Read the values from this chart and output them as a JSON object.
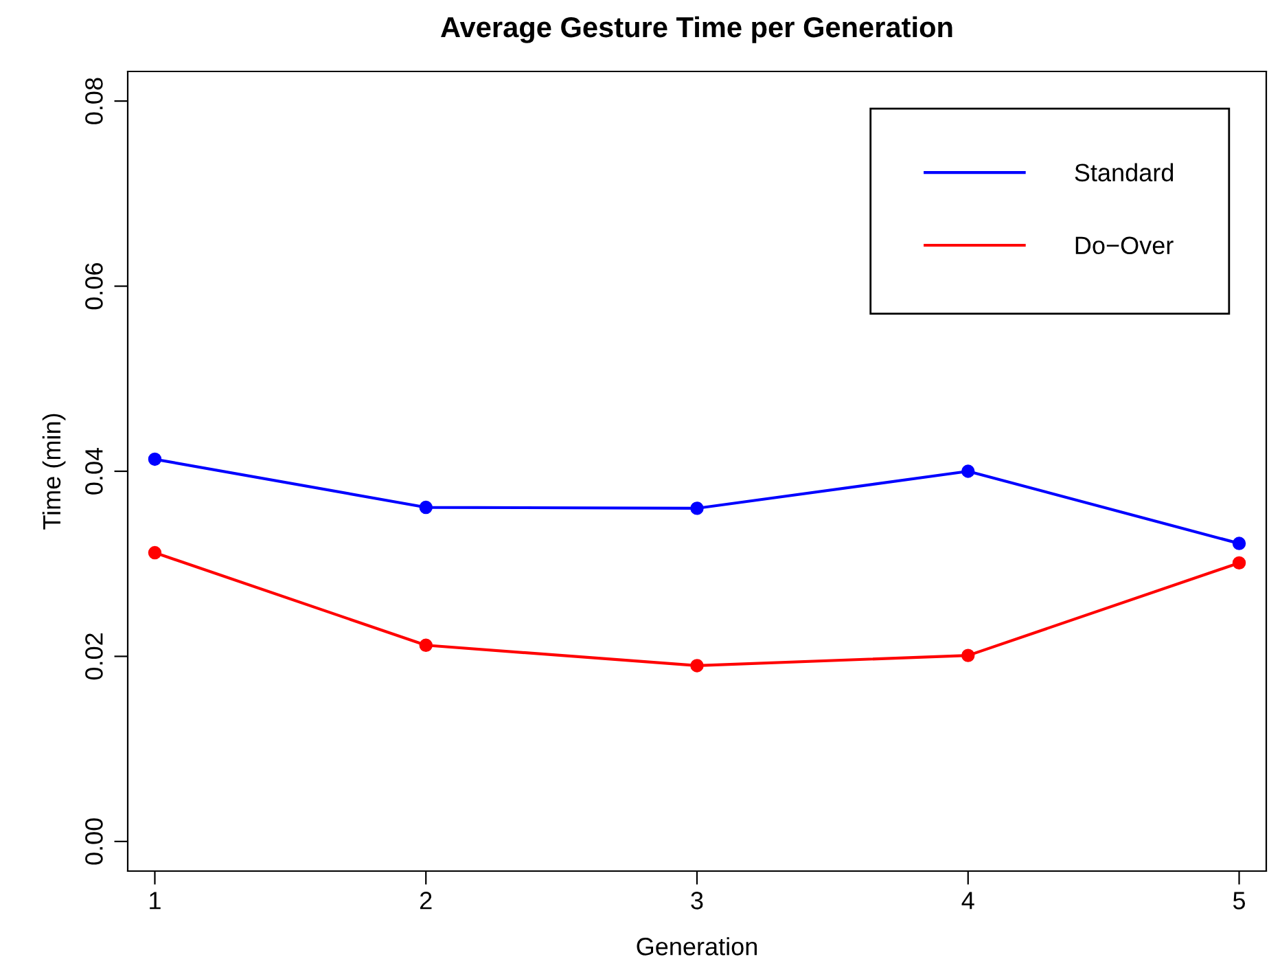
{
  "chart_data": {
    "type": "line",
    "title": "Average Gesture Time per Generation",
    "xlabel": "Generation",
    "ylabel": "Time (min)",
    "x": [
      1,
      2,
      3,
      4,
      5
    ],
    "series": [
      {
        "name": "Standard",
        "color": "#0000ff",
        "values": [
          0.0413,
          0.0361,
          0.036,
          0.04,
          0.0322
        ]
      },
      {
        "name": "Do−Over",
        "color": "#ff0000",
        "values": [
          0.0312,
          0.0212,
          0.019,
          0.0201,
          0.0301
        ]
      }
    ],
    "xlim": [
      0.9,
      5.1
    ],
    "xticks": [
      1,
      2,
      3,
      4,
      5
    ],
    "ylim": [
      -0.0032,
      0.0832
    ],
    "yticks": [
      {
        "value": 0,
        "label": "0.00"
      },
      0.02,
      0.04,
      0.06,
      0.08
    ],
    "grid": false,
    "legend": "top right",
    "marker": "circle",
    "line_style": "solid"
  }
}
